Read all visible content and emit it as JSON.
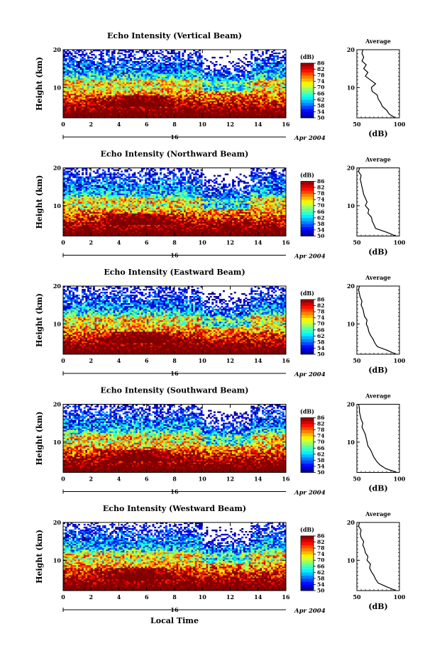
{
  "chart_data": [
    {
      "type": "heatmap",
      "title": "Echo Intensity (Vertical Beam)",
      "ylabel": "Height (km)",
      "xlabel": "",
      "xlim": [
        0,
        16
      ],
      "ylim": [
        2,
        20
      ],
      "x_ticks": [
        0,
        2,
        4,
        6,
        8,
        10,
        12,
        14,
        16
      ],
      "y_ticks": [
        10,
        20
      ],
      "date_day": "16",
      "date_month_year": "Apr 2004",
      "colorbar": {
        "label": "(dB)",
        "min": 50,
        "max": 86,
        "ticks": [
          50,
          54,
          58,
          62,
          66,
          70,
          74,
          78,
          82,
          86
        ]
      },
      "profile": {
        "title": "Average",
        "xlabel": "(dB)",
        "xlim": [
          50,
          100
        ],
        "x_ticks": [
          50,
          100
        ],
        "y_ticks": [
          10,
          20
        ],
        "height": [
          2,
          3,
          4,
          5,
          6,
          7,
          8,
          9,
          10,
          11,
          12,
          13,
          14,
          15,
          16,
          17,
          18,
          19,
          20
        ],
        "value": [
          95,
          88,
          85,
          80,
          78,
          75,
          74,
          68,
          67,
          72,
          66,
          60,
          63,
          58,
          61,
          56,
          58,
          56,
          57
        ]
      }
    },
    {
      "type": "heatmap",
      "title": "Echo Intensity (Northward Beam)",
      "ylabel": "Height (km)",
      "xlabel": "",
      "xlim": [
        0,
        16
      ],
      "ylim": [
        2,
        20
      ],
      "x_ticks": [
        0,
        2,
        4,
        6,
        8,
        10,
        12,
        14,
        16
      ],
      "y_ticks": [
        10,
        20
      ],
      "date_day": "16",
      "date_month_year": "Apr 2004",
      "colorbar": {
        "label": "(dB)",
        "min": 50,
        "max": 86,
        "ticks": [
          50,
          54,
          58,
          62,
          66,
          70,
          74,
          78,
          82,
          86
        ]
      },
      "profile": {
        "title": "Average",
        "xlabel": "(dB)",
        "xlim": [
          50,
          100
        ],
        "x_ticks": [
          50,
          100
        ],
        "y_ticks": [
          10,
          20
        ],
        "height": [
          2,
          3,
          4,
          5,
          6,
          7,
          8,
          9,
          10,
          11,
          12,
          13,
          14,
          15,
          16,
          17,
          18,
          19,
          20
        ],
        "value": [
          96,
          85,
          72,
          70,
          68,
          67,
          63,
          64,
          60,
          62,
          60,
          58,
          57,
          56,
          55,
          54,
          55,
          52,
          53
        ]
      }
    },
    {
      "type": "heatmap",
      "title": "Echo Intensity (Eastward Beam)",
      "ylabel": "Height (km)",
      "xlabel": "",
      "xlim": [
        0,
        16
      ],
      "ylim": [
        2,
        20
      ],
      "x_ticks": [
        0,
        2,
        4,
        6,
        8,
        10,
        12,
        14,
        16
      ],
      "y_ticks": [
        10,
        20
      ],
      "date_day": "16",
      "date_month_year": "Apr 2004",
      "colorbar": {
        "label": "(dB)",
        "min": 50,
        "max": 86,
        "ticks": [
          50,
          54,
          58,
          62,
          66,
          70,
          74,
          78,
          82,
          86
        ]
      },
      "profile": {
        "title": "Average",
        "xlabel": "(dB)",
        "xlim": [
          50,
          100
        ],
        "x_ticks": [
          50,
          100
        ],
        "y_ticks": [
          10,
          20
        ],
        "height": [
          2,
          3,
          4,
          5,
          6,
          7,
          8,
          9,
          10,
          11,
          12,
          13,
          14,
          15,
          16,
          17,
          18,
          19,
          20
        ],
        "value": [
          96,
          86,
          74,
          71,
          69,
          66,
          64,
          63,
          61,
          62,
          59,
          58,
          57,
          55,
          56,
          54,
          53,
          52,
          53
        ]
      }
    },
    {
      "type": "heatmap",
      "title": "Echo Intensity (Southward Beam)",
      "ylabel": "Height (km)",
      "xlabel": "",
      "xlim": [
        0,
        16
      ],
      "ylim": [
        2,
        20
      ],
      "x_ticks": [
        0,
        2,
        4,
        6,
        8,
        10,
        12,
        14,
        16
      ],
      "y_ticks": [
        10,
        20
      ],
      "date_day": "16",
      "date_month_year": "Apr 2004",
      "colorbar": {
        "label": "(dB)",
        "min": 50,
        "max": 86,
        "ticks": [
          50,
          54,
          58,
          62,
          66,
          70,
          74,
          78,
          82,
          86
        ]
      },
      "profile": {
        "title": "Average",
        "xlabel": "(dB)",
        "xlim": [
          50,
          100
        ],
        "x_ticks": [
          50,
          100
        ],
        "y_ticks": [
          10,
          20
        ],
        "height": [
          2,
          3,
          4,
          5,
          6,
          7,
          8,
          9,
          10,
          11,
          12,
          13,
          14,
          15,
          16,
          17,
          18,
          19,
          20
        ],
        "value": [
          97,
          84,
          77,
          73,
          70,
          68,
          66,
          63,
          62,
          61,
          60,
          58,
          56,
          57,
          55,
          54,
          53,
          53,
          52
        ]
      }
    },
    {
      "type": "heatmap",
      "title": "Echo Intensity (Westward Beam)",
      "ylabel": "Height (km)",
      "xlabel": "Local Time",
      "xlim": [
        0,
        16
      ],
      "ylim": [
        2,
        20
      ],
      "x_ticks": [
        0,
        2,
        4,
        6,
        8,
        10,
        12,
        14,
        16
      ],
      "y_ticks": [
        10,
        20
      ],
      "date_day": "16",
      "date_month_year": "Apr 2004",
      "colorbar": {
        "label": "(dB)",
        "min": 50,
        "max": 86,
        "ticks": [
          50,
          54,
          58,
          62,
          66,
          70,
          74,
          78,
          82,
          86
        ]
      },
      "profile": {
        "title": "Average",
        "xlabel": "(dB)",
        "xlim": [
          50,
          100
        ],
        "x_ticks": [
          50,
          100
        ],
        "y_ticks": [
          10,
          20
        ],
        "height": [
          2,
          3,
          4,
          5,
          6,
          7,
          8,
          9,
          10,
          11,
          12,
          13,
          14,
          15,
          16,
          17,
          18,
          19,
          20
        ],
        "value": [
          96,
          85,
          75,
          72,
          70,
          67,
          65,
          66,
          62,
          63,
          60,
          59,
          57,
          58,
          55,
          54,
          55,
          52,
          53
        ]
      }
    }
  ],
  "colors": {
    "jet_low": "#00008f",
    "jet_mid": "#00ff80",
    "jet_high": "#ff0000"
  }
}
